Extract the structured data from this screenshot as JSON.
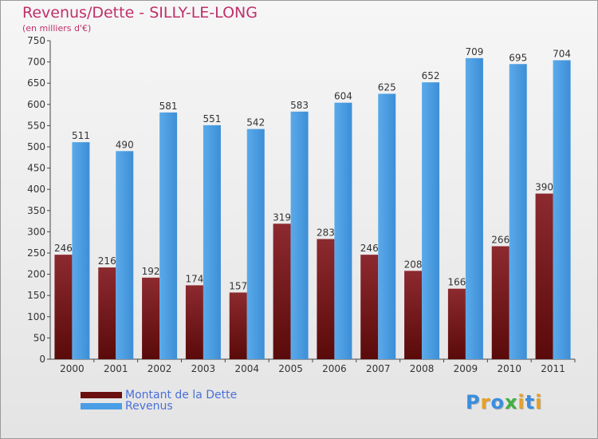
{
  "header": {
    "title": "Revenus/Dette - SILLY-LE-LONG",
    "subtitle": "(en milliers d'€)"
  },
  "colors": {
    "title": "#c0306a",
    "debt_bar_top": "#8c2a2f",
    "debt_bar_bottom": "#5a0a0a",
    "revenue_bar_light": "#5aaaea",
    "revenue_bar_dark": "#3d8ed6",
    "axis": "#444444",
    "grid": "#d4d4d4",
    "legend_text": "#4a6fd8"
  },
  "legend": {
    "items": [
      {
        "label": "Montant de la Dette",
        "color": "#6a1010"
      },
      {
        "label": "Revenus",
        "color": "#4a9ee6"
      }
    ]
  },
  "logo": {
    "letters": [
      {
        "char": "P",
        "color": "#3a8ee0"
      },
      {
        "char": "r",
        "color": "#e8a020"
      },
      {
        "char": "o",
        "color": "#3a8ee0"
      },
      {
        "char": "x",
        "color": "#40b040"
      },
      {
        "char": "i",
        "color": "#e8a020"
      },
      {
        "char": "t",
        "color": "#3a8ee0"
      },
      {
        "char": "i",
        "color": "#e8a020"
      }
    ]
  },
  "chart_data": {
    "type": "bar",
    "title": "Revenus/Dette - SILLY-LE-LONG",
    "subtitle": "(en milliers d'€)",
    "categories": [
      "2000",
      "2001",
      "2002",
      "2003",
      "2004",
      "2005",
      "2006",
      "2007",
      "2008",
      "2009",
      "2010",
      "2011"
    ],
    "series": [
      {
        "name": "Montant de la Dette",
        "values": [
          246,
          216,
          192,
          174,
          157,
          319,
          283,
          246,
          208,
          166,
          266,
          390
        ]
      },
      {
        "name": "Revenus",
        "values": [
          511,
          490,
          581,
          551,
          542,
          583,
          604,
          625,
          652,
          709,
          695,
          704
        ]
      }
    ],
    "ylim": [
      0,
      750
    ],
    "yticks": [
      0,
      50,
      100,
      150,
      200,
      250,
      300,
      350,
      400,
      450,
      500,
      550,
      600,
      650,
      700,
      750
    ],
    "grid": false,
    "legend_position": "bottom-left"
  }
}
